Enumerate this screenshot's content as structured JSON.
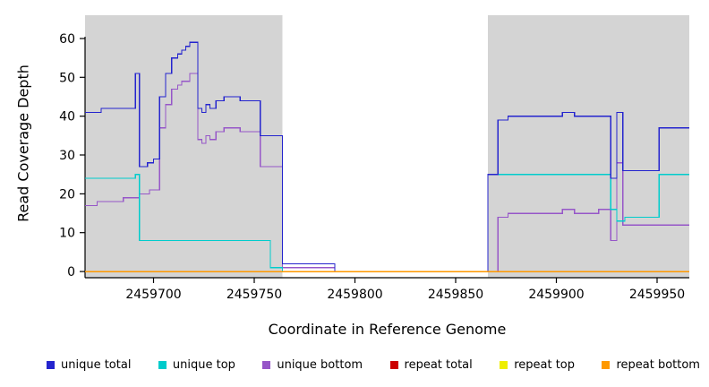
{
  "chart_data": {
    "type": "line",
    "style": "step",
    "title": "",
    "xlabel": "Coordinate in Reference Genome",
    "ylabel": "Read Coverage Depth",
    "xlim": [
      2459666,
      2459966
    ],
    "ylim": [
      0,
      60
    ],
    "xticks": [
      2459700,
      2459750,
      2459800,
      2459850,
      2459900,
      2459950
    ],
    "yticks": [
      0,
      10,
      20,
      30,
      40,
      50,
      60
    ],
    "grid": false,
    "legend_position": "bottom",
    "shaded_regions": [
      {
        "x0": 2459666,
        "x1": 2459764,
        "color": "#d4d4d4"
      },
      {
        "x0": 2459866,
        "x1": 2459966,
        "color": "#d4d4d4"
      }
    ],
    "series": [
      {
        "name": "repeat total",
        "color": "#cc0000",
        "points": [
          [
            2459666,
            0
          ]
        ]
      },
      {
        "name": "repeat top",
        "color": "#eeee00",
        "points": [
          [
            2459666,
            0
          ]
        ]
      },
      {
        "name": "unique bottom",
        "color": "#9656c8",
        "points": [
          [
            2459666,
            17
          ],
          [
            2459672,
            18
          ],
          [
            2459685,
            19
          ],
          [
            2459693,
            20
          ],
          [
            2459698,
            21
          ],
          [
            2459703,
            37
          ],
          [
            2459706,
            43
          ],
          [
            2459709,
            47
          ],
          [
            2459712,
            48
          ],
          [
            2459714,
            49
          ],
          [
            2459718,
            51
          ],
          [
            2459722,
            34
          ],
          [
            2459724,
            33
          ],
          [
            2459726,
            35
          ],
          [
            2459728,
            34
          ],
          [
            2459731,
            36
          ],
          [
            2459735,
            37
          ],
          [
            2459743,
            36
          ],
          [
            2459753,
            27
          ],
          [
            2459764,
            1
          ],
          [
            2459790,
            0
          ],
          [
            2459871,
            14
          ],
          [
            2459876,
            15
          ],
          [
            2459903,
            16
          ],
          [
            2459909,
            15
          ],
          [
            2459921,
            16
          ],
          [
            2459927,
            8
          ],
          [
            2459930,
            28
          ],
          [
            2459933,
            12
          ]
        ]
      },
      {
        "name": "unique top",
        "color": "#00cccc",
        "points": [
          [
            2459666,
            24
          ],
          [
            2459691,
            25
          ],
          [
            2459693,
            8
          ],
          [
            2459758,
            1
          ],
          [
            2459764,
            0
          ],
          [
            2459866,
            25
          ],
          [
            2459927,
            16
          ],
          [
            2459930,
            13
          ],
          [
            2459934,
            14
          ],
          [
            2459951,
            25
          ]
        ]
      },
      {
        "name": "unique total",
        "color": "#2424ce",
        "points": [
          [
            2459666,
            41
          ],
          [
            2459674,
            42
          ],
          [
            2459691,
            51
          ],
          [
            2459693,
            27
          ],
          [
            2459697,
            28
          ],
          [
            2459700,
            29
          ],
          [
            2459703,
            45
          ],
          [
            2459706,
            51
          ],
          [
            2459709,
            55
          ],
          [
            2459712,
            56
          ],
          [
            2459714,
            57
          ],
          [
            2459716,
            58
          ],
          [
            2459718,
            59
          ],
          [
            2459722,
            42
          ],
          [
            2459724,
            41
          ],
          [
            2459726,
            43
          ],
          [
            2459728,
            42
          ],
          [
            2459731,
            44
          ],
          [
            2459735,
            45
          ],
          [
            2459743,
            44
          ],
          [
            2459753,
            35
          ],
          [
            2459764,
            2
          ],
          [
            2459790,
            0
          ],
          [
            2459866,
            25
          ],
          [
            2459871,
            39
          ],
          [
            2459876,
            40
          ],
          [
            2459903,
            41
          ],
          [
            2459909,
            40
          ],
          [
            2459927,
            24
          ],
          [
            2459930,
            41
          ],
          [
            2459933,
            26
          ],
          [
            2459951,
            37
          ]
        ]
      },
      {
        "name": "repeat bottom",
        "color": "#ff9900",
        "points": [
          [
            2459666,
            0
          ]
        ]
      }
    ],
    "legend": [
      {
        "label": "unique total",
        "color": "#2424ce"
      },
      {
        "label": "unique top",
        "color": "#00cccc"
      },
      {
        "label": "unique bottom",
        "color": "#9656c8"
      },
      {
        "label": "repeat total",
        "color": "#cc0000"
      },
      {
        "label": "repeat top",
        "color": "#eeee00"
      },
      {
        "label": "repeat bottom",
        "color": "#ff9900"
      }
    ]
  }
}
